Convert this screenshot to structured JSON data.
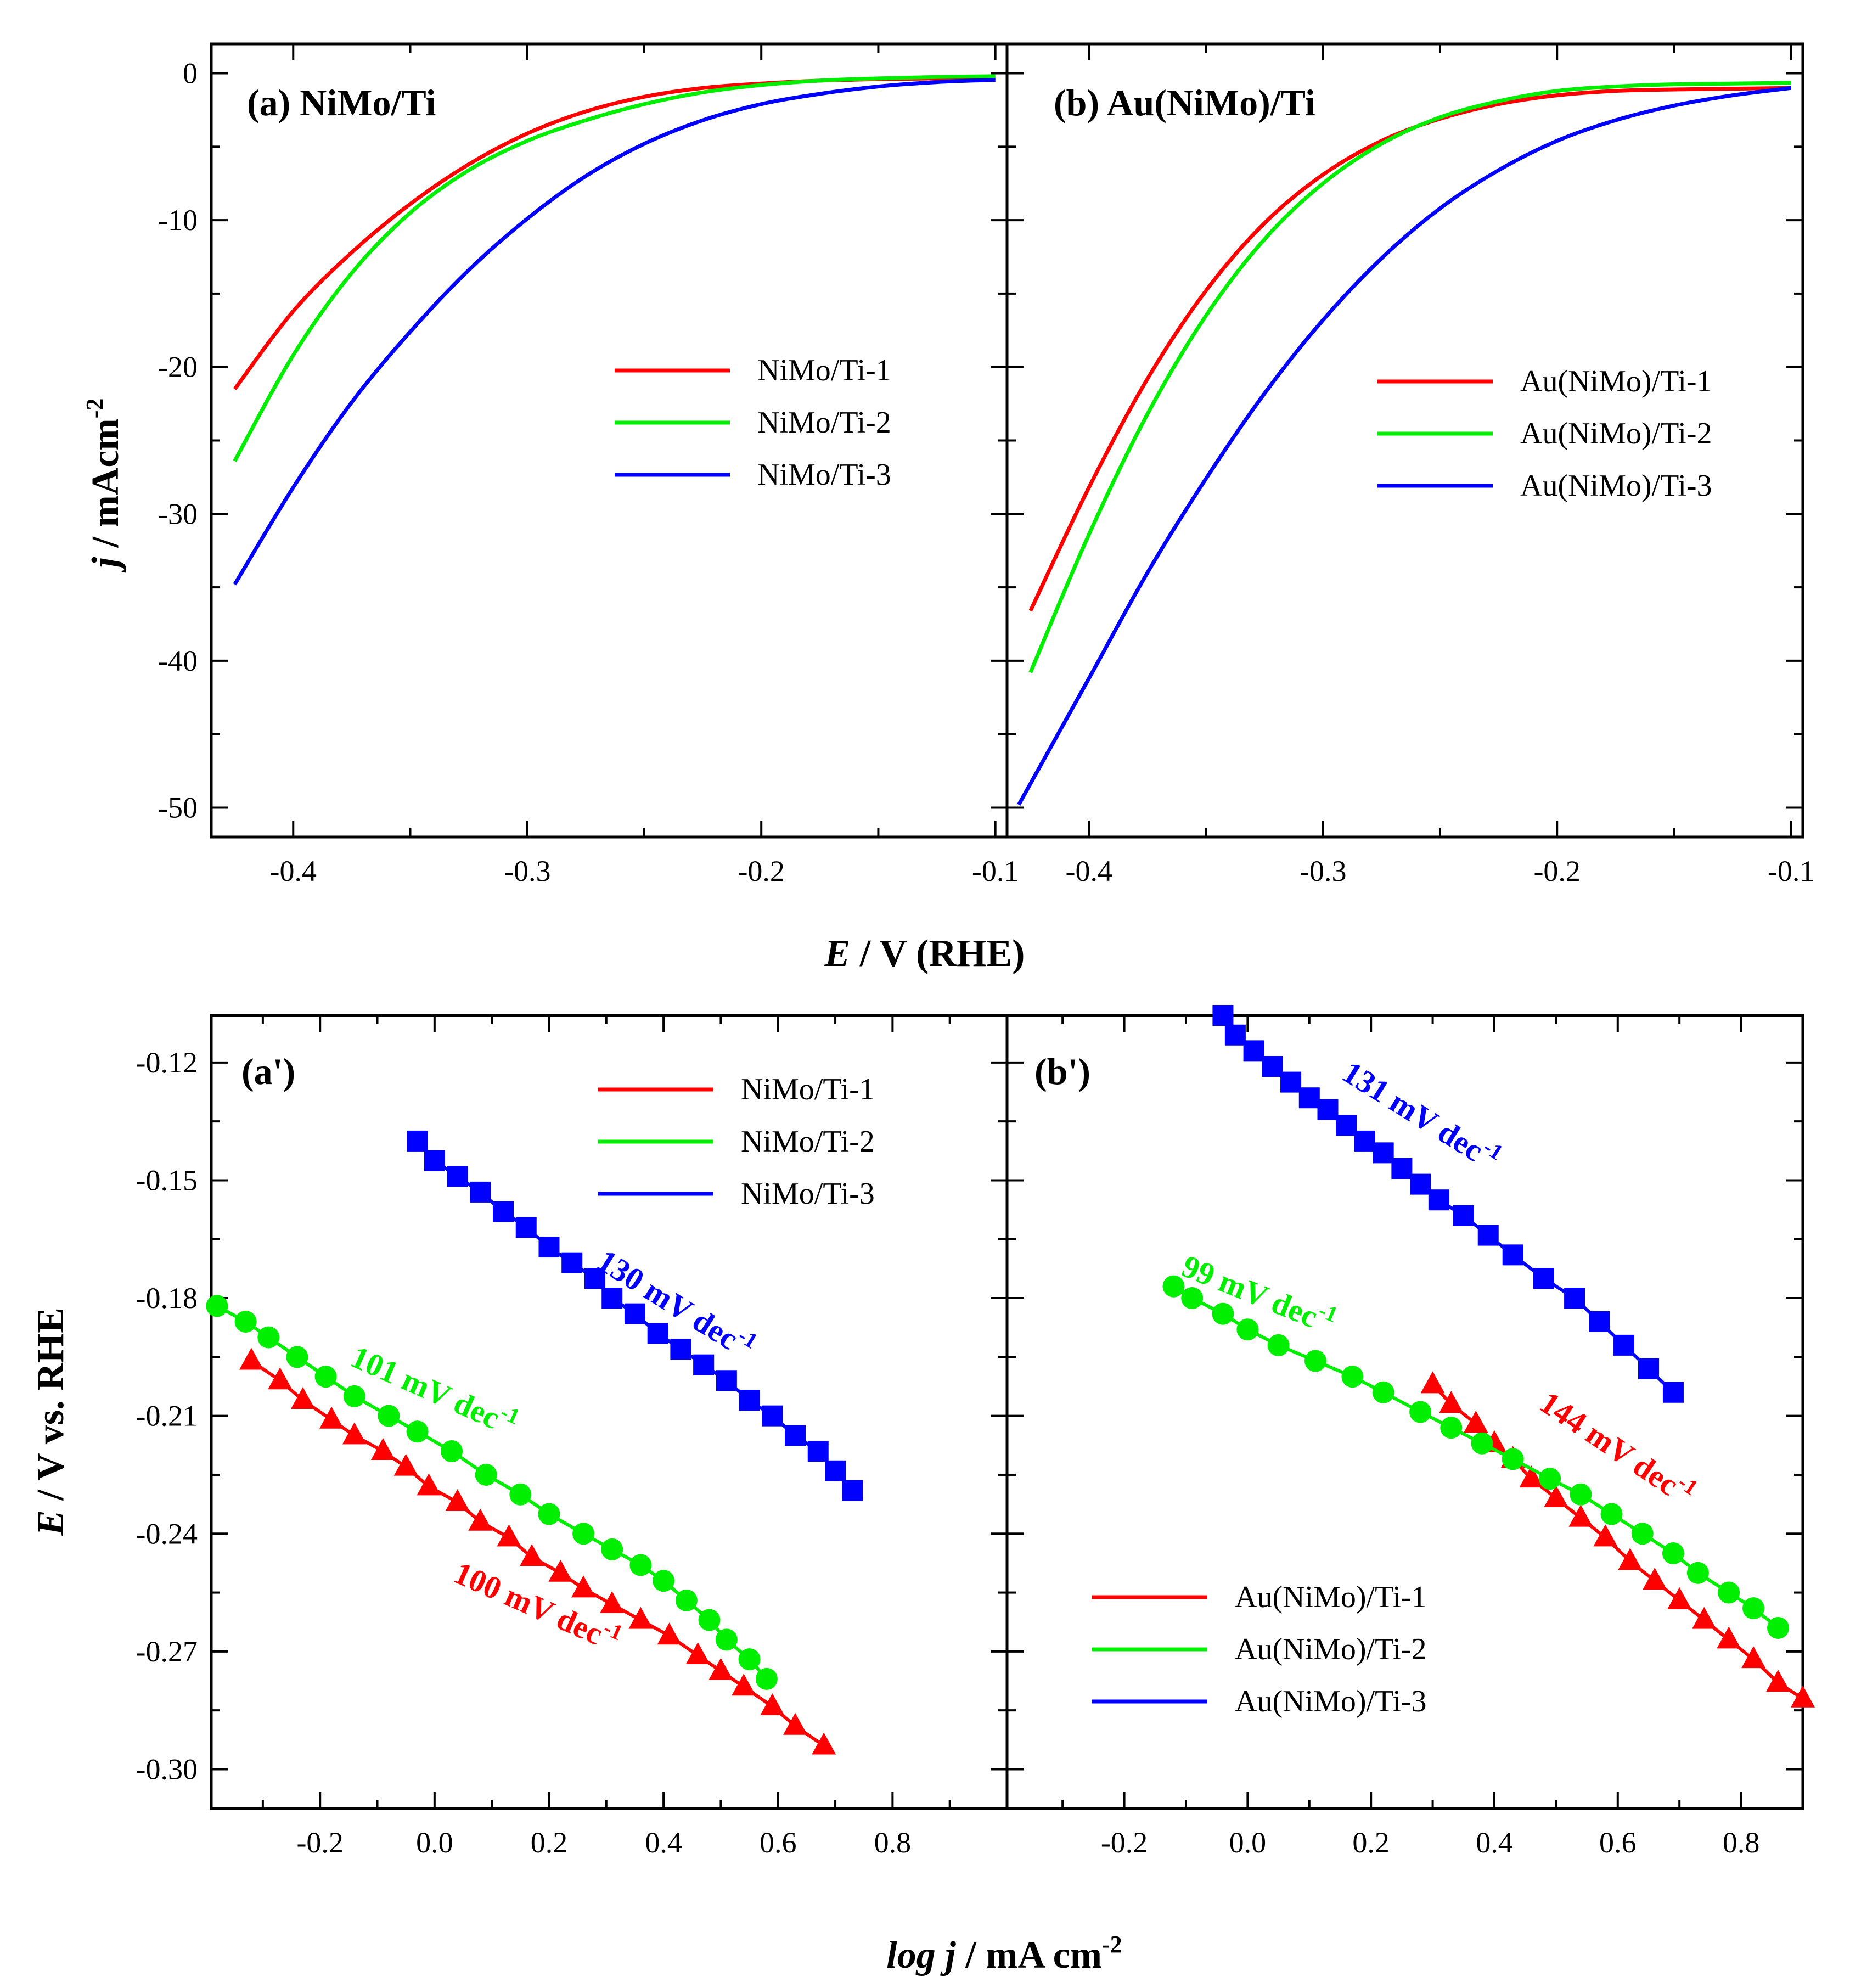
{
  "chart_data": [
    {
      "id": "a",
      "type": "line",
      "panel_label": "(a) NiMo/Ti",
      "xlim": [
        -0.435,
        -0.095
      ],
      "ylim": [
        -52,
        2
      ],
      "xticks": [
        -0.4,
        -0.3,
        -0.2,
        -0.1
      ],
      "xtick_labels": [
        "-0.4",
        "-0.3",
        "-0.2",
        "-0.1"
      ],
      "yticks": [
        0,
        -10,
        -20,
        -30,
        -40,
        -50
      ],
      "ytick_labels": [
        "0",
        "-10",
        "-20",
        "-30",
        "-40",
        "-50"
      ],
      "ylabel": "j / mAcm",
      "ylabel_sup": "-2",
      "legend_position": "center-right",
      "series": [
        {
          "name": "NiMo/Ti-1",
          "color": "#ff0000",
          "x": [
            -0.425,
            -0.4,
            -0.375,
            -0.35,
            -0.325,
            -0.3,
            -0.275,
            -0.25,
            -0.225,
            -0.2,
            -0.175,
            -0.15,
            -0.125,
            -0.1
          ],
          "y": [
            -21.5,
            -16.2,
            -12.2,
            -8.9,
            -6.2,
            -4.1,
            -2.6,
            -1.6,
            -1.0,
            -0.7,
            -0.5,
            -0.4,
            -0.35,
            -0.3
          ]
        },
        {
          "name": "NiMo/Ti-2",
          "color": "#00ee00",
          "x": [
            -0.425,
            -0.4,
            -0.375,
            -0.35,
            -0.325,
            -0.3,
            -0.275,
            -0.25,
            -0.225,
            -0.2,
            -0.175,
            -0.15,
            -0.125,
            -0.1
          ],
          "y": [
            -26.4,
            -19.2,
            -13.6,
            -9.5,
            -6.6,
            -4.6,
            -3.2,
            -2.1,
            -1.3,
            -0.8,
            -0.5,
            -0.35,
            -0.25,
            -0.2
          ]
        },
        {
          "name": "NiMo/Ti-3",
          "color": "#0000ff",
          "x": [
            -0.425,
            -0.4,
            -0.375,
            -0.35,
            -0.325,
            -0.3,
            -0.275,
            -0.25,
            -0.225,
            -0.2,
            -0.175,
            -0.15,
            -0.125,
            -0.1
          ],
          "y": [
            -34.8,
            -28.2,
            -22.4,
            -17.6,
            -13.4,
            -9.9,
            -7.0,
            -4.8,
            -3.2,
            -2.1,
            -1.4,
            -0.9,
            -0.6,
            -0.45
          ]
        }
      ]
    },
    {
      "id": "b",
      "type": "line",
      "panel_label": "(b) Au(NiMo)/Ti",
      "xlim": [
        -0.435,
        -0.095
      ],
      "ylim": [
        -52,
        2
      ],
      "xticks": [
        -0.4,
        -0.3,
        -0.2,
        -0.1
      ],
      "xtick_labels": [
        "-0.4",
        "-0.3",
        "-0.2",
        "-0.1"
      ],
      "yticks": [
        0,
        -10,
        -20,
        -30,
        -40,
        -50
      ],
      "ytick_labels": [],
      "legend_position": "center-right",
      "series": [
        {
          "name": "Au(NiMo)/Ti-1",
          "color": "#ff0000",
          "x": [
            -0.425,
            -0.4,
            -0.375,
            -0.35,
            -0.325,
            -0.3,
            -0.275,
            -0.25,
            -0.225,
            -0.2,
            -0.175,
            -0.15,
            -0.125,
            -0.1
          ],
          "y": [
            -36.6,
            -28.2,
            -20.8,
            -14.8,
            -10.2,
            -6.9,
            -4.6,
            -3.1,
            -2.1,
            -1.5,
            -1.2,
            -1.1,
            -1.05,
            -1.0
          ]
        },
        {
          "name": "Au(NiMo)/Ti-2",
          "color": "#00ee00",
          "x": [
            -0.425,
            -0.4,
            -0.375,
            -0.35,
            -0.325,
            -0.3,
            -0.275,
            -0.25,
            -0.225,
            -0.2,
            -0.175,
            -0.15,
            -0.125,
            -0.1
          ],
          "y": [
            -40.8,
            -31.4,
            -23.2,
            -16.5,
            -11.3,
            -7.5,
            -4.8,
            -3.0,
            -1.9,
            -1.2,
            -0.9,
            -0.75,
            -0.7,
            -0.65
          ]
        },
        {
          "name": "Au(NiMo)/Ti-3",
          "color": "#0000ff",
          "x": [
            -0.43,
            -0.4,
            -0.375,
            -0.35,
            -0.325,
            -0.3,
            -0.275,
            -0.25,
            -0.225,
            -0.2,
            -0.175,
            -0.15,
            -0.125,
            -0.1
          ],
          "y": [
            -49.8,
            -41.2,
            -34.0,
            -27.6,
            -21.8,
            -16.8,
            -12.6,
            -9.2,
            -6.6,
            -4.6,
            -3.2,
            -2.2,
            -1.5,
            -1.0
          ]
        }
      ]
    },
    {
      "id": "a2",
      "type": "scatter",
      "panel_label": "(a')",
      "xlim": [
        -0.39,
        1.0
      ],
      "ylim": [
        -0.31,
        -0.108
      ],
      "xticks": [
        -0.2,
        0.0,
        0.2,
        0.4,
        0.6,
        0.8
      ],
      "xtick_labels": [
        "-0.2",
        "0.0",
        "0.2",
        "0.4",
        "0.6",
        "0.8"
      ],
      "yticks": [
        -0.12,
        -0.15,
        -0.18,
        -0.21,
        -0.24,
        -0.27,
        -0.3
      ],
      "ytick_labels": [
        "-0.12",
        "-0.15",
        "-0.18",
        "-0.21",
        "-0.24",
        "-0.27",
        "-0.30"
      ],
      "ylabel": "E / V vs. RHE",
      "legend_position": "top-right",
      "series": [
        {
          "name": "NiMo/Ti-1",
          "color": "#ff0000",
          "marker": "triangle",
          "x": [
            -0.32,
            -0.27,
            -0.23,
            -0.18,
            -0.14,
            -0.09,
            -0.05,
            -0.01,
            0.04,
            0.08,
            0.13,
            0.17,
            0.22,
            0.26,
            0.31,
            0.36,
            0.41,
            0.46,
            0.5,
            0.54,
            0.59,
            0.63,
            0.68
          ],
          "y": [
            -0.196,
            -0.201,
            -0.206,
            -0.211,
            -0.215,
            -0.219,
            -0.223,
            -0.228,
            -0.232,
            -0.237,
            -0.241,
            -0.246,
            -0.25,
            -0.254,
            -0.258,
            -0.262,
            -0.266,
            -0.271,
            -0.275,
            -0.279,
            -0.284,
            -0.289,
            -0.294
          ]
        },
        {
          "name": "NiMo/Ti-2",
          "color": "#00ee00",
          "marker": "circle",
          "x": [
            -0.38,
            -0.33,
            -0.29,
            -0.24,
            -0.19,
            -0.14,
            -0.08,
            -0.03,
            0.03,
            0.09,
            0.15,
            0.2,
            0.26,
            0.31,
            0.36,
            0.4,
            0.44,
            0.48,
            0.51,
            0.55,
            0.58
          ],
          "y": [
            -0.182,
            -0.186,
            -0.19,
            -0.195,
            -0.2,
            -0.205,
            -0.21,
            -0.214,
            -0.219,
            -0.225,
            -0.23,
            -0.235,
            -0.24,
            -0.244,
            -0.248,
            -0.252,
            -0.257,
            -0.262,
            -0.267,
            -0.272,
            -0.277
          ]
        },
        {
          "name": "NiMo/Ti-3",
          "color": "#0000ff",
          "marker": "square",
          "x": [
            -0.03,
            0.0,
            0.04,
            0.08,
            0.12,
            0.16,
            0.2,
            0.24,
            0.28,
            0.31,
            0.35,
            0.39,
            0.43,
            0.47,
            0.51,
            0.55,
            0.59,
            0.63,
            0.67,
            0.7,
            0.73
          ],
          "y": [
            -0.14,
            -0.145,
            -0.149,
            -0.153,
            -0.158,
            -0.162,
            -0.167,
            -0.171,
            -0.175,
            -0.18,
            -0.184,
            -0.189,
            -0.193,
            -0.197,
            -0.201,
            -0.206,
            -0.21,
            -0.215,
            -0.219,
            -0.224,
            -0.229
          ]
        }
      ],
      "annotations": [
        {
          "text": "130 mV dec",
          "sup": "-1",
          "color": "#0000ff",
          "x": 0.28,
          "y": -0.172,
          "angle": 32
        },
        {
          "text": "101 mV dec",
          "sup": "-1",
          "color": "#00ee00",
          "x": -0.15,
          "y": -0.197,
          "angle": 24
        },
        {
          "text": "100 mV dec",
          "sup": "-1",
          "color": "#ff0000",
          "x": 0.03,
          "y": -0.252,
          "angle": 24
        }
      ]
    },
    {
      "id": "b2",
      "type": "scatter",
      "panel_label": "(b')",
      "xlim": [
        -0.39,
        0.9
      ],
      "ylim": [
        -0.31,
        -0.108
      ],
      "xticks": [
        -0.2,
        0.0,
        0.2,
        0.4,
        0.6,
        0.8
      ],
      "xtick_labels": [
        "-0.2",
        "0.0",
        "0.2",
        "0.4",
        "0.6",
        "0.8"
      ],
      "yticks": [
        -0.12,
        -0.15,
        -0.18,
        -0.21,
        -0.24,
        -0.27,
        -0.3
      ],
      "ytick_labels": [],
      "legend_position": "bottom-left",
      "series": [
        {
          "name": "Au(NiMo)/Ti-1",
          "color": "#ff0000",
          "marker": "triangle",
          "x": [
            0.3,
            0.33,
            0.37,
            0.4,
            0.43,
            0.46,
            0.5,
            0.54,
            0.58,
            0.62,
            0.66,
            0.7,
            0.74,
            0.78,
            0.82,
            0.86,
            0.9
          ],
          "y": [
            -0.202,
            -0.207,
            -0.212,
            -0.217,
            -0.221,
            -0.226,
            -0.231,
            -0.236,
            -0.241,
            -0.247,
            -0.252,
            -0.257,
            -0.262,
            -0.267,
            -0.272,
            -0.278,
            -0.282
          ]
        },
        {
          "name": "Au(NiMo)/Ti-2",
          "color": "#00ee00",
          "marker": "circle",
          "x": [
            -0.12,
            -0.09,
            -0.04,
            0.0,
            0.05,
            0.11,
            0.17,
            0.22,
            0.28,
            0.33,
            0.38,
            0.43,
            0.49,
            0.54,
            0.59,
            0.64,
            0.69,
            0.73,
            0.78,
            0.82,
            0.86
          ],
          "y": [
            -0.177,
            -0.18,
            -0.184,
            -0.188,
            -0.192,
            -0.196,
            -0.2,
            -0.204,
            -0.209,
            -0.213,
            -0.217,
            -0.221,
            -0.226,
            -0.23,
            -0.235,
            -0.24,
            -0.245,
            -0.25,
            -0.255,
            -0.259,
            -0.264
          ]
        },
        {
          "name": "Au(NiMo)/Ti-3",
          "color": "#0000ff",
          "marker": "square",
          "x": [
            -0.04,
            -0.02,
            0.01,
            0.04,
            0.07,
            0.1,
            0.13,
            0.16,
            0.19,
            0.22,
            0.25,
            0.28,
            0.31,
            0.35,
            0.39,
            0.43,
            0.48,
            0.53,
            0.57,
            0.61,
            0.65,
            0.69
          ],
          "y": [
            -0.108,
            -0.113,
            -0.117,
            -0.121,
            -0.125,
            -0.129,
            -0.132,
            -0.136,
            -0.14,
            -0.143,
            -0.147,
            -0.151,
            -0.155,
            -0.159,
            -0.164,
            -0.169,
            -0.175,
            -0.18,
            -0.186,
            -0.192,
            -0.198,
            -0.204
          ]
        }
      ],
      "annotations": [
        {
          "text": "131 mV dec",
          "sup": "-1",
          "color": "#0000ff",
          "x": 0.15,
          "y": -0.124,
          "angle": 32
        },
        {
          "text": "99 mV dec",
          "sup": "-1",
          "color": "#00ee00",
          "x": -0.11,
          "y": -0.174,
          "angle": 22
        },
        {
          "text": "144 mV dec",
          "sup": "-1",
          "color": "#ff0000",
          "x": 0.47,
          "y": -0.208,
          "angle": 34
        }
      ]
    }
  ],
  "shared": {
    "top_xlabel_italic": "E",
    "top_xlabel_rest": " / V (RHE)",
    "bottom_xlabel_italic": "log j",
    "bottom_xlabel_rest": " / mA cm",
    "bottom_xlabel_sup": "-2",
    "left_top_ylabel_italic": "j",
    "left_top_ylabel_rest": " / mAcm",
    "left_top_ylabel_sup": "-2",
    "left_bottom_ylabel_italic": "E",
    "left_bottom_ylabel_rest": " / V vs. RHE"
  }
}
